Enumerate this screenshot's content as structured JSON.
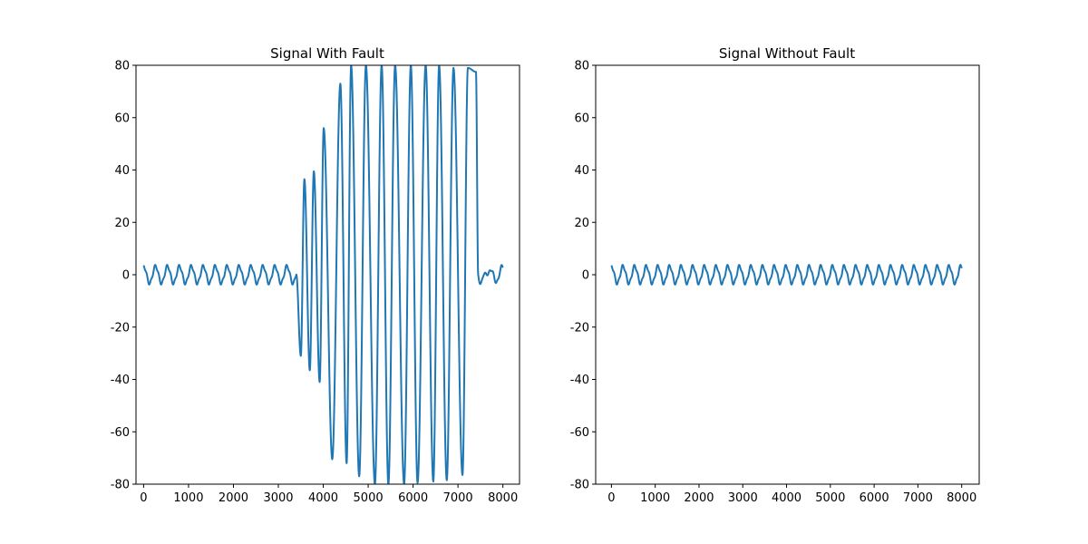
{
  "chart_data": [
    {
      "type": "line",
      "title": "Signal With Fault",
      "xlabel": "",
      "ylabel": "",
      "xlim": [
        -170,
        8370
      ],
      "ylim": [
        -80,
        80
      ],
      "xticks": [
        0,
        1000,
        2000,
        3000,
        4000,
        5000,
        6000,
        7000,
        8000
      ],
      "yticks": [
        -80,
        -60,
        -40,
        -20,
        0,
        20,
        40,
        60,
        80
      ],
      "grid": false,
      "legend": "none",
      "color": "#1f77b4",
      "signal": {
        "samples": 8000,
        "period": 266,
        "normal_amplitude": 3.3,
        "fault_start": 3400,
        "fault_end": 7450,
        "fault_period": 213,
        "fault_peaks": [
          {
            "x": 3500,
            "y": -31
          },
          {
            "x": 3580,
            "y": 36.5
          },
          {
            "x": 3700,
            "y": -36.5
          },
          {
            "x": 3790,
            "y": 39.5
          },
          {
            "x": 3920,
            "y": -41
          },
          {
            "x": 4010,
            "y": 56
          },
          {
            "x": 4200,
            "y": -70.5
          },
          {
            "x": 4380,
            "y": 73
          },
          {
            "x": 4520,
            "y": -72
          },
          {
            "x": 4620,
            "y": 80
          },
          {
            "x": 4800,
            "y": -77
          },
          {
            "x": 4950,
            "y": 80
          },
          {
            "x": 5150,
            "y": -80
          },
          {
            "x": 5300,
            "y": 80
          },
          {
            "x": 5450,
            "y": -80
          },
          {
            "x": 5600,
            "y": 80
          },
          {
            "x": 5800,
            "y": -80
          },
          {
            "x": 5950,
            "y": 80
          },
          {
            "x": 6100,
            "y": -79.5
          },
          {
            "x": 6280,
            "y": 80
          },
          {
            "x": 6450,
            "y": -79
          },
          {
            "x": 6580,
            "y": 80
          },
          {
            "x": 6750,
            "y": -78.5
          },
          {
            "x": 6900,
            "y": 79
          },
          {
            "x": 7100,
            "y": -76.5
          },
          {
            "x": 7220,
            "y": 79
          },
          {
            "x": 7400,
            "y": 77.5
          }
        ]
      }
    },
    {
      "type": "line",
      "title": "Signal Without Fault",
      "xlabel": "",
      "ylabel": "",
      "xlim": [
        -360,
        8400
      ],
      "ylim": [
        -80,
        80
      ],
      "xticks": [
        0,
        1000,
        2000,
        3000,
        4000,
        5000,
        6000,
        7000,
        8000
      ],
      "yticks": [
        -80,
        -60,
        -40,
        -20,
        0,
        20,
        40,
        60,
        80
      ],
      "grid": false,
      "legend": "none",
      "color": "#1f77b4",
      "signal": {
        "samples": 8000,
        "period": 266,
        "normal_amplitude": 3.3
      }
    }
  ]
}
